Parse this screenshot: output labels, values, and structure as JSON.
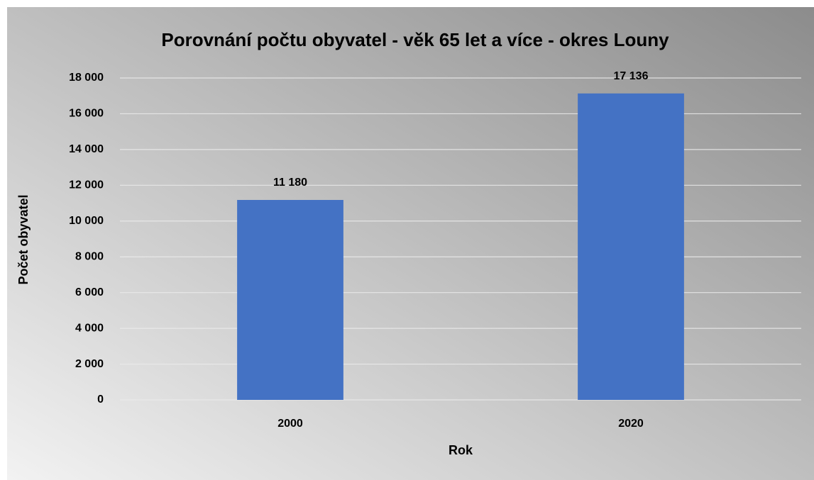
{
  "chart_data": {
    "type": "bar",
    "title": "Porovnání počtu obyvatel - věk 65 let a více - okres Louny",
    "x_label": "Rok",
    "y_label": "Počet obyvatel",
    "categories": [
      "2000",
      "2020"
    ],
    "values": [
      11180,
      17136
    ],
    "value_labels": [
      "11 180",
      "17 136"
    ],
    "color": "#4472c4",
    "ylim": [
      0,
      18000
    ],
    "yticks": [
      0,
      {
        "value": 2000,
        "label": "2 000"
      },
      {
        "value": 4000,
        "label": "4 000"
      },
      {
        "value": 6000,
        "label": "6 000"
      },
      {
        "value": 8000,
        "label": "8 000"
      },
      {
        "value": 10000,
        "label": "10 000"
      },
      {
        "value": 12000,
        "label": "12 000"
      },
      {
        "value": 14000,
        "label": "14 000"
      },
      {
        "value": 16000,
        "label": "16 000"
      },
      {
        "value": 18000,
        "label": "18 000"
      }
    ],
    "grid": true
  }
}
